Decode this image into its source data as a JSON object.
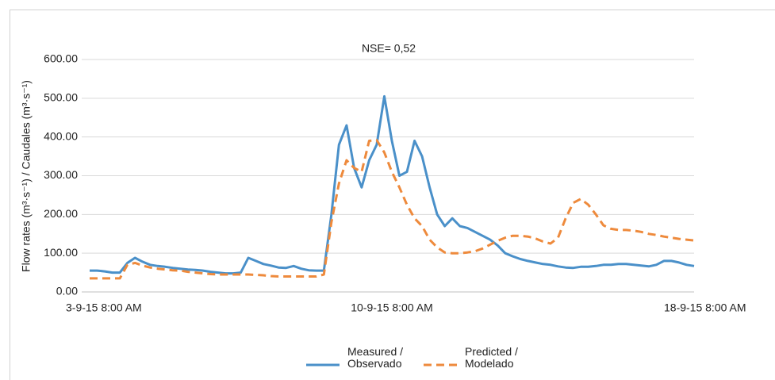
{
  "chart_data": {
    "type": "line",
    "title": "NSE= 0,52",
    "y_label": "Flow rates (m³·s⁻¹) / Caudales (m³·s⁻¹)",
    "categories": [
      "3-9-15 8:00 AM",
      null,
      null,
      null,
      null,
      null,
      null,
      null,
      null,
      null,
      null,
      null,
      null,
      null,
      null,
      null,
      null,
      null,
      null,
      null,
      null,
      null,
      null,
      null,
      null,
      null,
      null,
      null,
      null,
      null,
      null,
      null,
      null,
      null,
      null,
      null,
      null,
      null,
      null,
      null,
      "10-9-15 8:00 AM",
      null,
      null,
      null,
      null,
      null,
      null,
      null,
      null,
      null,
      null,
      null,
      null,
      null,
      null,
      null,
      null,
      null,
      null,
      null,
      null,
      null,
      null,
      null,
      null,
      null,
      null,
      null,
      null,
      null,
      null,
      null,
      null,
      null,
      null,
      null,
      null,
      null,
      null,
      null,
      "18-9-15 8:00 AM"
    ],
    "series": [
      {
        "name": "Measured / Observado",
        "color": "#4a90c9",
        "dash": false,
        "values": [
          55,
          55,
          53,
          50,
          50,
          75,
          88,
          78,
          70,
          67,
          65,
          62,
          60,
          58,
          57,
          55,
          52,
          50,
          48,
          48,
          50,
          88,
          80,
          72,
          68,
          63,
          62,
          67,
          60,
          56,
          55,
          55,
          200,
          380,
          430,
          320,
          270,
          340,
          380,
          505,
          390,
          300,
          310,
          390,
          350,
          270,
          200,
          170,
          190,
          170,
          165,
          155,
          145,
          135,
          120,
          100,
          92,
          85,
          80,
          76,
          72,
          70,
          66,
          63,
          62,
          65,
          65,
          67,
          70,
          70,
          72,
          72,
          70,
          68,
          66,
          70,
          80,
          80,
          76,
          70,
          67
        ]
      },
      {
        "name": "Predicted / Modelado",
        "color": "#ee8a3c",
        "dash": true,
        "values": [
          35,
          35,
          35,
          35,
          35,
          70,
          75,
          68,
          63,
          60,
          58,
          56,
          55,
          52,
          50,
          48,
          46,
          45,
          45,
          45,
          45,
          45,
          44,
          43,
          41,
          40,
          40,
          40,
          40,
          40,
          40,
          45,
          180,
          280,
          340,
          320,
          310,
          390,
          392,
          360,
          310,
          270,
          225,
          190,
          170,
          135,
          115,
          102,
          100,
          100,
          102,
          105,
          112,
          122,
          132,
          140,
          145,
          145,
          143,
          138,
          130,
          125,
          140,
          190,
          230,
          240,
          225,
          200,
          172,
          163,
          160,
          160,
          158,
          155,
          150,
          147,
          143,
          140,
          137,
          135,
          133
        ]
      }
    ],
    "ylim": [
      0,
      600
    ],
    "yticks": [
      {
        "value": 0,
        "label": "0.00"
      },
      {
        "value": 100,
        "label": "100.00"
      },
      {
        "value": 200,
        "label": "200.00"
      },
      {
        "value": 300,
        "label": "300.00"
      },
      {
        "value": 400,
        "label": "400.00"
      },
      {
        "value": 500,
        "label": "500.00"
      },
      {
        "value": 600,
        "label": "600.00"
      }
    ],
    "grid": true,
    "legend": "bottom"
  }
}
